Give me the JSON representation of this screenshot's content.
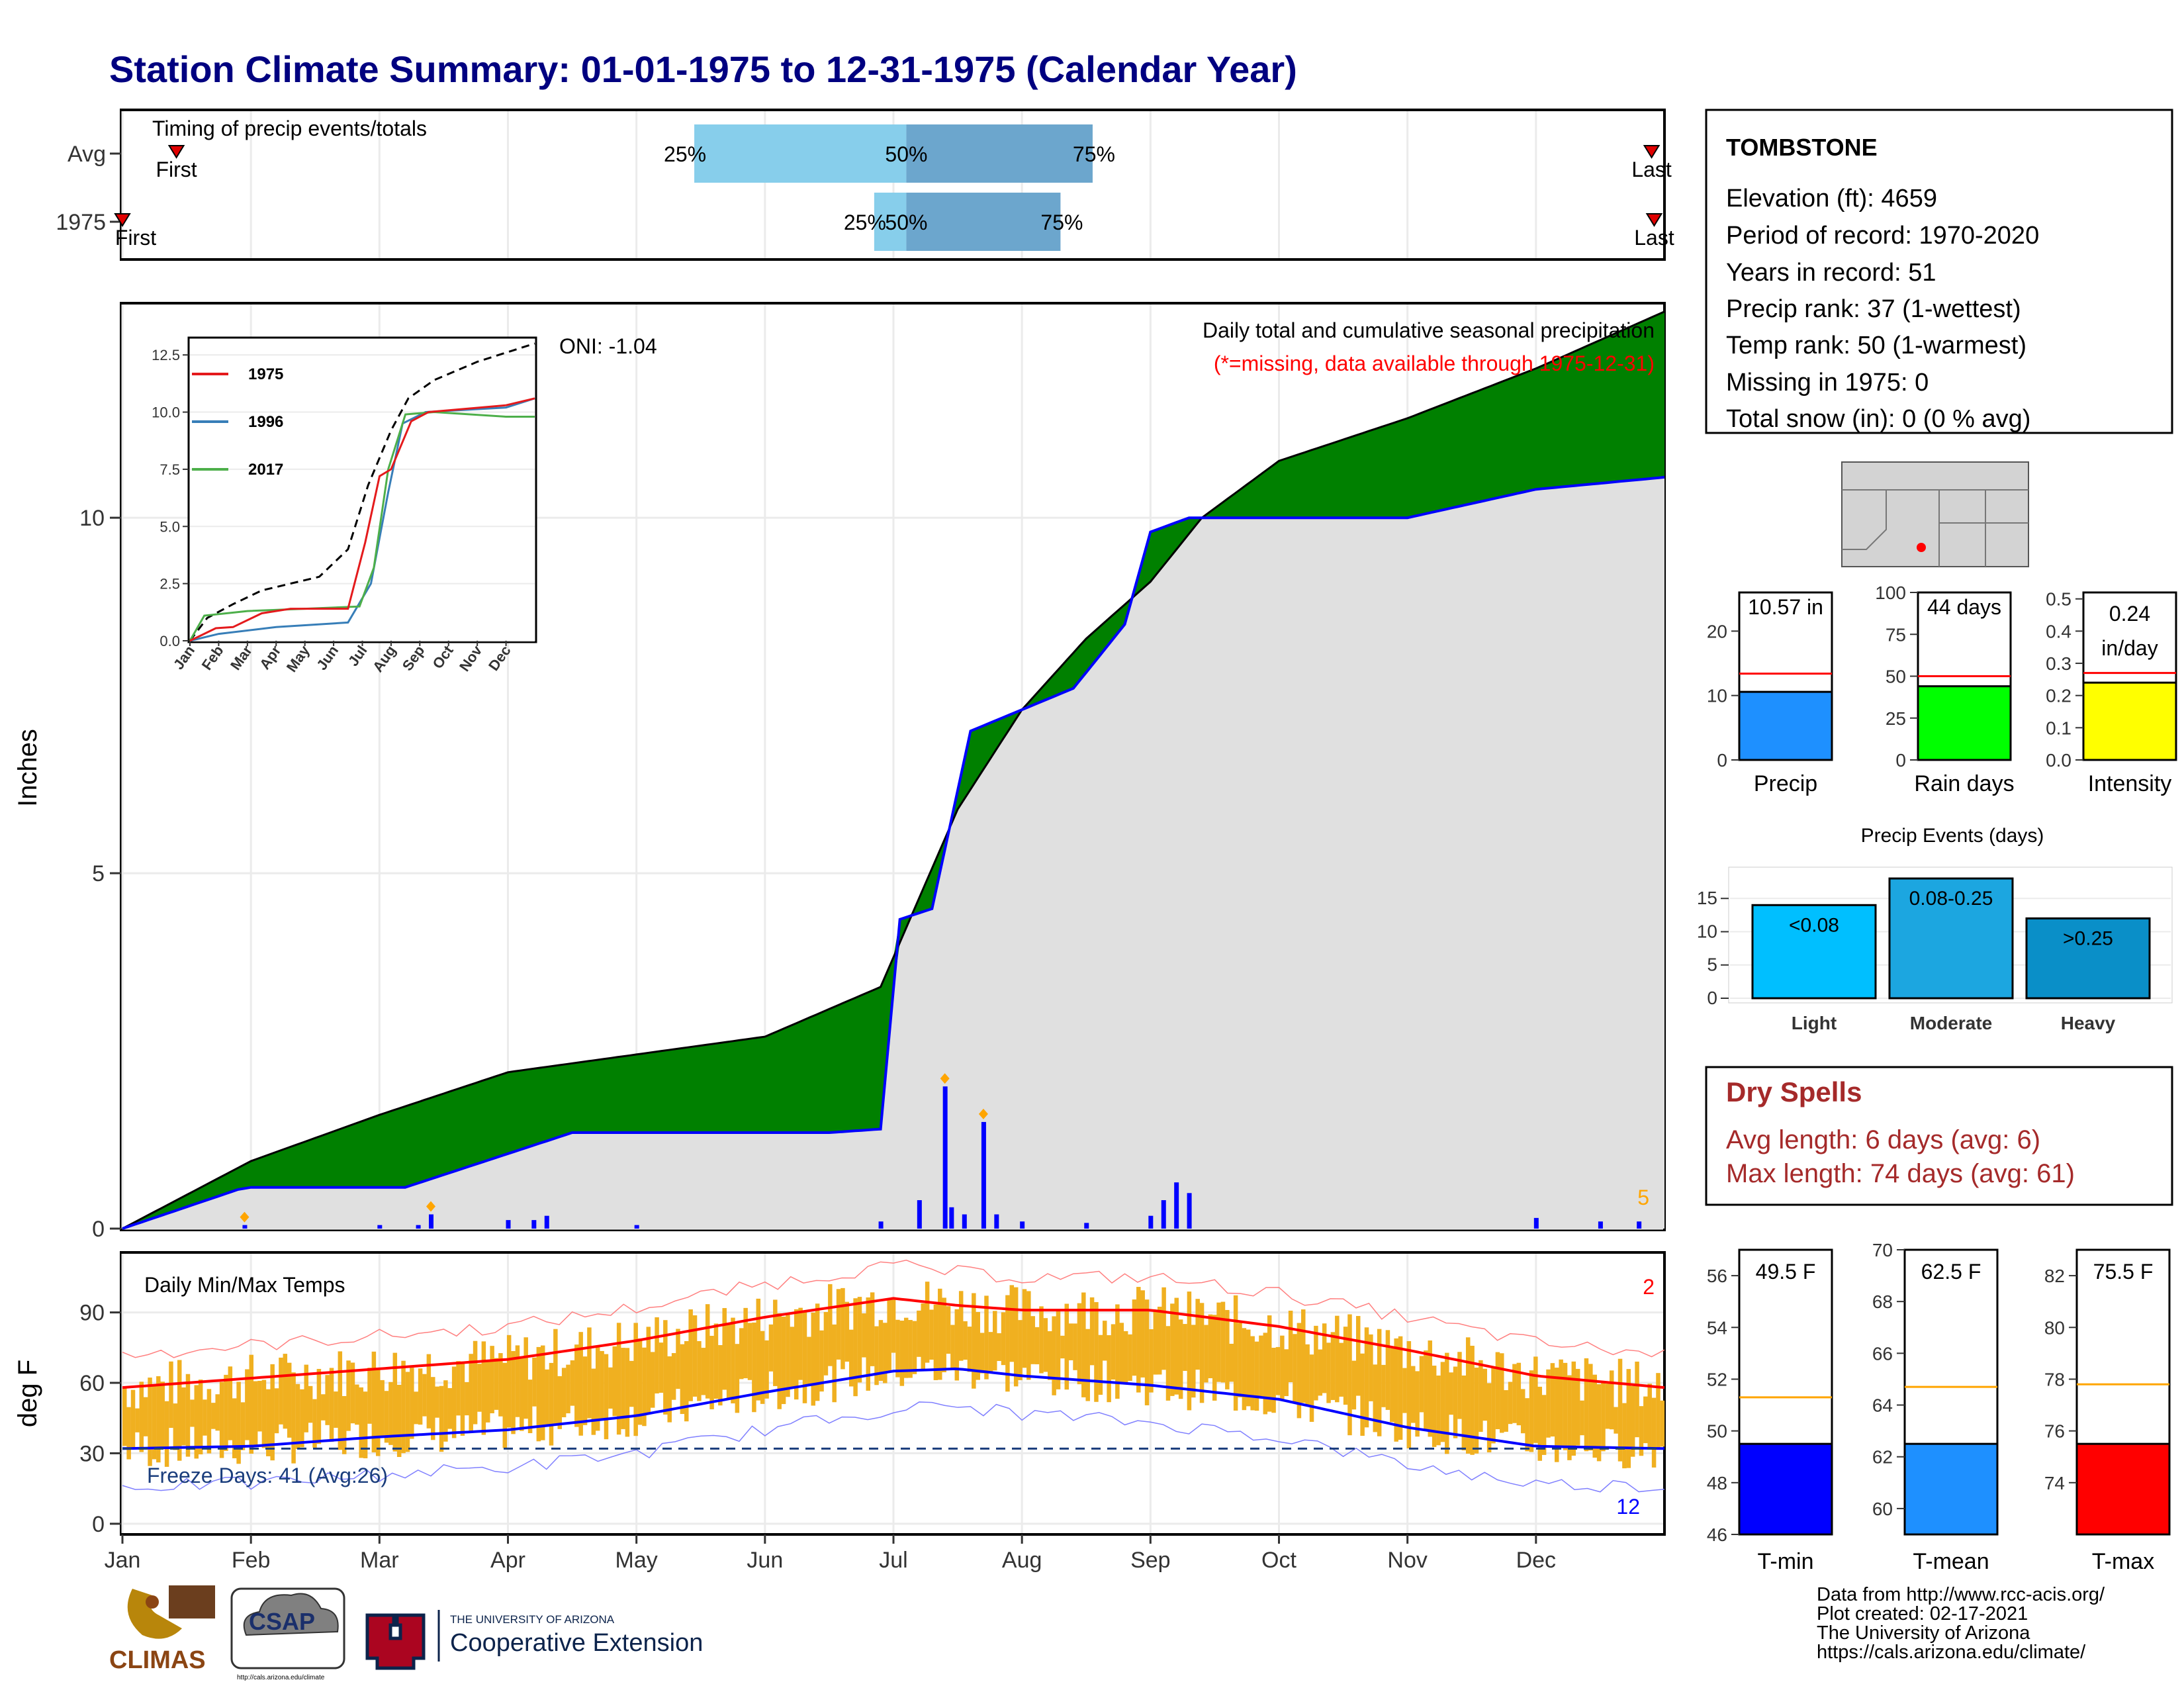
{
  "title": "Station Climate Summary: 01-01-1975 to 12-31-1975 (Calendar Year)",
  "colors": {
    "title": "#000080",
    "precip_brown": "#8B5A00",
    "precip_green": "#008000",
    "avg_fill": "#E0E0E0",
    "precip_blue": "#0000FF",
    "missing_red": "#FF0000",
    "temp_band": "#F0B020",
    "tmin_blue": "#0000FF",
    "tmax_red": "#FF0000",
    "light_blue": "#00BFFF",
    "moderate_blue": "#1CA6E0",
    "heavy_blue": "#0A8FC8",
    "dry_spell_text": "#A52A2A"
  },
  "months": [
    "Jan",
    "Feb",
    "Mar",
    "Apr",
    "May",
    "Jun",
    "Jul",
    "Aug",
    "Sep",
    "Oct",
    "Nov",
    "Dec"
  ],
  "timing": {
    "title": "Timing of precip events/totals",
    "rows": [
      {
        "label": "Avg",
        "first_label": "First",
        "last_label": "Last",
        "q25": "25%",
        "q50": "50%",
        "q75": "75%",
        "first_month": 1.42,
        "last_month": 12.9,
        "p25_month": 5.45,
        "p50_month": 7.1,
        "p75_month": 8.55
      },
      {
        "label": "1975",
        "first_label": "First",
        "last_label": "Last",
        "q25": "25%",
        "q50": "50%",
        "q75": "75%",
        "first_month": 1.0,
        "last_month": 12.92,
        "p25_month": 6.85,
        "p50_month": 7.1,
        "p75_month": 8.3
      }
    ]
  },
  "station": {
    "name": "TOMBSTONE",
    "lines": [
      "Elevation (ft): 4659",
      "Period of record: 1970-2020",
      "Years in record: 51",
      "Precip rank: 37 (1-wettest)",
      "Temp rank: 50 (1-warmest)",
      "Missing in 1975: 0",
      "Total snow (in): 0 (0 % avg)"
    ]
  },
  "precip_panel": {
    "ylabel": "Inches",
    "oni": "ONI: -1.04",
    "subtitle": "Daily total and cumulative seasonal precipitation",
    "missing_note": "(*=missing, data available through 1975-12-31)",
    "count_label": "5"
  },
  "inset": {
    "legend": [
      "1975",
      "1996",
      "2017"
    ],
    "legend_colors": [
      "#E41A1C",
      "#377EB8",
      "#4DAF4A"
    ],
    "yticks": [
      "0.0",
      "2.5",
      "5.0",
      "7.5",
      "10.0",
      "12.5"
    ]
  },
  "gauges": [
    {
      "label": "Precip",
      "value_text": "10.57 in",
      "value": 10.57,
      "avg": 13.4,
      "ymax": 26,
      "ticks": [
        "0",
        "10",
        "20"
      ],
      "tickvals": [
        0,
        10,
        20
      ],
      "color": "#1E90FF"
    },
    {
      "label": "Rain days",
      "value_text": "44 days",
      "value": 44,
      "avg": 50,
      "ymax": 100,
      "ticks": [
        "0",
        "25",
        "50",
        "75",
        "100"
      ],
      "tickvals": [
        0,
        25,
        50,
        75,
        100
      ],
      "color": "#00FF00"
    },
    {
      "label": "Intensity",
      "value_text": "0.24",
      "value_text2": "in/day",
      "value": 0.24,
      "avg": 0.27,
      "ymax": 0.52,
      "ticks": [
        "0.0",
        "0.1",
        "0.2",
        "0.3",
        "0.4",
        "0.5"
      ],
      "tickvals": [
        0,
        0.1,
        0.2,
        0.3,
        0.4,
        0.5
      ],
      "color": "#FFFF00"
    }
  ],
  "precip_events": {
    "title": "Precip Events (days)",
    "categories": [
      "Light",
      "Moderate",
      "Heavy"
    ],
    "bar_labels": [
      "<0.08",
      "0.08-0.25",
      ">0.25"
    ],
    "values": [
      14,
      18,
      12
    ],
    "yticks": [
      "0",
      "5",
      "10",
      "15"
    ],
    "colors": [
      "#00BFFF",
      "#1CA6E0",
      "#0A8FC8"
    ]
  },
  "dry_spells": {
    "title": "Dry Spells",
    "avg": "Avg length: 6 days (avg: 6)",
    "max": "Max length: 74 days (avg: 61)"
  },
  "temp_panel": {
    "ylabel": "deg F",
    "title": "Daily Min/Max Temps",
    "freeze_text": "Freeze Days: 41 (Avg:26)",
    "max_count": "2",
    "min_count": "12",
    "yticks": [
      "0",
      "30",
      "60",
      "90"
    ]
  },
  "temp_gauges": [
    {
      "label": "T-min",
      "value_text": "49.5 F",
      "value": 49.5,
      "avg": 51.3,
      "ymin": 46,
      "ymax": 57,
      "ticks": [
        "46",
        "48",
        "50",
        "52",
        "54",
        "56"
      ],
      "tickvals": [
        46,
        48,
        50,
        52,
        54,
        56
      ],
      "color": "#0000FF"
    },
    {
      "label": "T-mean",
      "value_text": "62.5 F",
      "value": 62.5,
      "avg": 64.7,
      "ymin": 59,
      "ymax": 70,
      "ticks": [
        "60",
        "62",
        "64",
        "66",
        "68",
        "70"
      ],
      "tickvals": [
        60,
        62,
        64,
        66,
        68,
        70
      ],
      "color": "#1E90FF"
    },
    {
      "label": "T-max",
      "value_text": "75.5 F",
      "value": 75.5,
      "avg": 77.8,
      "ymin": 72,
      "ymax": 83,
      "ticks": [
        "74",
        "76",
        "78",
        "80",
        "82"
      ],
      "tickvals": [
        74,
        76,
        78,
        80,
        82
      ],
      "color": "#FF0000"
    }
  ],
  "footer": {
    "lines": [
      "Data from http://www.rcc-acis.org/",
      "Plot created: 02-17-2021",
      "The University of Arizona",
      "https://cals.arizona.edu/climate/"
    ],
    "logos": {
      "climas": "CLIMAS",
      "csap": "CSAP",
      "csap_url": "http://cals.arizona.edu/climate",
      "ua_top": "THE UNIVERSITY OF ARIZONA",
      "ua_bottom": "Cooperative Extension"
    }
  },
  "chart_data": [
    {
      "type": "area",
      "title": "Daily total and cumulative seasonal precipitation",
      "ylabel": "Inches",
      "ylim": [
        0,
        13
      ],
      "cumulative_1975": {
        "x_month": [
          1.0,
          1.9,
          2.0,
          3.2,
          4.5,
          5.7,
          6.5,
          6.9,
          7.05,
          7.3,
          7.6,
          8.0,
          8.4,
          8.8,
          9.0,
          9.3,
          10.0,
          11.0,
          12.0,
          13.0
        ],
        "y": [
          0.0,
          0.55,
          0.58,
          0.58,
          1.35,
          1.35,
          1.35,
          1.4,
          4.35,
          4.5,
          7.0,
          7.3,
          7.6,
          8.5,
          9.8,
          10.0,
          10.0,
          10.0,
          10.4,
          10.57
        ]
      },
      "cumulative_average": {
        "x_month": [
          1.0,
          2.0,
          3.0,
          4.0,
          5.0,
          6.0,
          6.9,
          7.5,
          8.0,
          8.5,
          9.0,
          9.4,
          10.0,
          11.0,
          12.0,
          13.0
        ],
        "y": [
          0.0,
          0.95,
          1.6,
          2.2,
          2.45,
          2.7,
          3.4,
          5.9,
          7.3,
          8.3,
          9.1,
          10.0,
          10.8,
          11.4,
          12.1,
          12.9
        ]
      },
      "daily_1975": {
        "x_month": [
          1.95,
          3.0,
          3.3,
          3.4,
          4.0,
          4.2,
          4.3,
          5.0,
          6.9,
          7.2,
          7.4,
          7.45,
          7.55,
          7.7,
          7.8,
          8.0,
          8.5,
          9.0,
          9.1,
          9.2,
          9.3,
          12.0,
          12.5,
          12.8
        ],
        "y": [
          0.05,
          0.05,
          0.05,
          0.2,
          0.12,
          0.12,
          0.18,
          0.05,
          0.1,
          0.4,
          2.0,
          0.3,
          0.2,
          1.5,
          0.2,
          0.1,
          0.08,
          0.18,
          0.4,
          0.65,
          0.5,
          0.15,
          0.1,
          0.1
        ]
      }
    },
    {
      "type": "line",
      "title": "Daily Min/Max Temps",
      "ylabel": "deg F",
      "ylim": [
        0,
        115
      ],
      "series": [
        {
          "name": "avg max",
          "x_month": [
            1.0,
            2.0,
            3.0,
            4.0,
            5.0,
            6.0,
            7.0,
            7.5,
            8.0,
            9.0,
            10.0,
            11.0,
            12.0,
            13.0
          ],
          "y": [
            58,
            62,
            66,
            70,
            78,
            88,
            96,
            93,
            91,
            91,
            84,
            74,
            63,
            58
          ]
        },
        {
          "name": "avg min",
          "x_month": [
            1.0,
            2.0,
            3.0,
            4.0,
            5.0,
            6.0,
            7.0,
            7.5,
            8.0,
            9.0,
            10.0,
            11.0,
            12.0,
            13.0
          ],
          "y": [
            32,
            33,
            37,
            40,
            46,
            56,
            65,
            66,
            63,
            59,
            53,
            41,
            33,
            32
          ]
        }
      ]
    }
  ]
}
